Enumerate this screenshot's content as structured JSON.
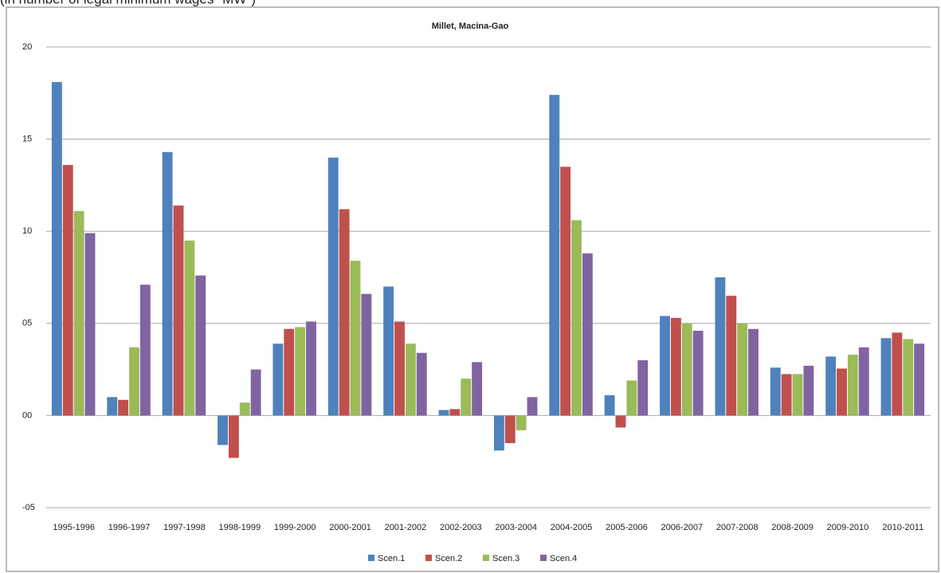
{
  "chart_data": {
    "type": "bar",
    "subtitle": "(in number of legal minimum wages \"MW\")",
    "title": "Millet, Macina-Gao",
    "categories": [
      "1995-1996",
      "1996-1997",
      "1997-1998",
      "1998-1999",
      "1999-2000",
      "2000-2001",
      "2001-2002",
      "2002-2003",
      "2003-2004",
      "2004-2005",
      "2005-2006",
      "2006-2007",
      "2007-2008",
      "2008-2009",
      "2009-2010",
      "2010-2011"
    ],
    "series": [
      {
        "name": "Scen.1",
        "color": "#4f81bd",
        "values": [
          18.1,
          1.0,
          14.3,
          -1.6,
          3.9,
          14.0,
          7.0,
          0.3,
          -1.9,
          17.4,
          1.1,
          5.4,
          7.5,
          2.6,
          3.2,
          4.2
        ]
      },
      {
        "name": "Scen.2",
        "color": "#c0504d",
        "values": [
          13.6,
          0.85,
          11.4,
          -2.3,
          4.7,
          11.2,
          5.1,
          0.35,
          -1.5,
          13.5,
          -0.65,
          5.3,
          6.5,
          2.25,
          2.55,
          4.5
        ]
      },
      {
        "name": "Scen.3",
        "color": "#9bbb59",
        "values": [
          11.1,
          3.7,
          9.5,
          0.7,
          4.8,
          8.4,
          3.9,
          2.0,
          -0.8,
          10.6,
          1.9,
          5.0,
          5.0,
          2.25,
          3.3,
          4.15
        ]
      },
      {
        "name": "Scen.4",
        "color": "#8064a2",
        "values": [
          9.9,
          7.1,
          7.6,
          2.5,
          5.1,
          6.6,
          3.4,
          2.9,
          1.0,
          8.8,
          3.0,
          4.6,
          4.7,
          2.7,
          3.7,
          3.9
        ]
      }
    ],
    "ylim": [
      -5,
      20
    ],
    "yticks": [
      {
        "value": -5,
        "label": "-05"
      },
      {
        "value": 0,
        "label": "00"
      },
      {
        "value": 5,
        "label": "05"
      },
      10,
      15,
      20
    ],
    "grid": true,
    "legend": "bottom"
  }
}
